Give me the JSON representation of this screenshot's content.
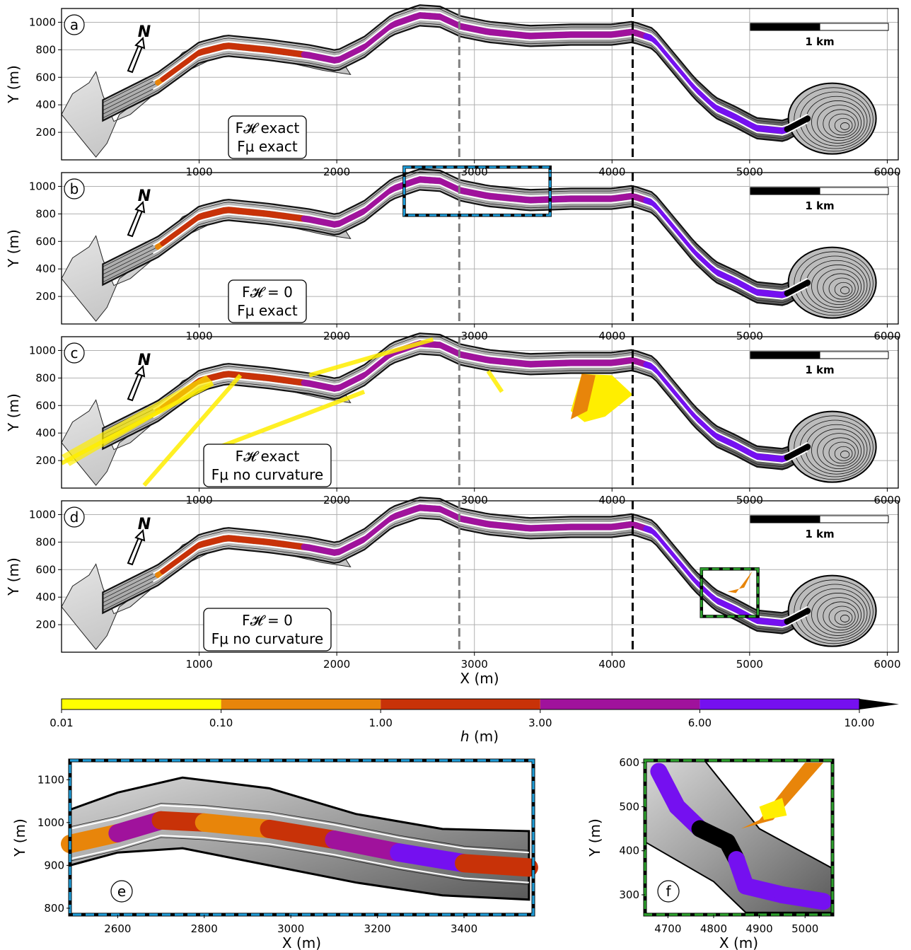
{
  "chart_data": {
    "type": "heatmap",
    "x_label": "X (m)",
    "y_label": "Y (m)",
    "x_range": [
      0,
      6080
    ],
    "y_range": [
      0,
      1100
    ],
    "x_ticks": [
      1000,
      2000,
      3000,
      4000,
      5000,
      6000
    ],
    "x_tick_labels": [
      "1000",
      "2000",
      "3000",
      "4000",
      "5000",
      "6000"
    ],
    "y_ticks": [
      200,
      400,
      600,
      800,
      1000
    ],
    "y_tick_labels": [
      "200",
      "400",
      "600",
      "800",
      "1000"
    ],
    "grid": true,
    "vertical_lines": [
      {
        "x": 2890,
        "color": "#808080",
        "style": "dashed"
      },
      {
        "x": 4150,
        "color": "#000000",
        "style": "dashed"
      }
    ],
    "scale_bar": {
      "length_m": 1000,
      "label": "1 km"
    },
    "north_label": "N",
    "panels": [
      {
        "id": "a",
        "label": "a",
        "settings": [
          "F𝓗 exact",
          "Fμ exact"
        ]
      },
      {
        "id": "b",
        "label": "b",
        "settings": [
          "F𝓗 = 0",
          "Fμ exact"
        ],
        "inset_box": {
          "x": [
            2490,
            3550
          ],
          "y": [
            790,
            1140
          ],
          "color": "#1f9bd6"
        }
      },
      {
        "id": "c",
        "label": "c",
        "settings": [
          "F𝓗 exact",
          "Fμ no curvature"
        ]
      },
      {
        "id": "d",
        "label": "d",
        "settings": [
          "F𝓗 = 0",
          "Fμ no curvature"
        ],
        "inset_box": {
          "x": [
            4650,
            5060
          ],
          "y": [
            260,
            605
          ],
          "color": "#2ca02c"
        }
      }
    ],
    "colorbar": {
      "label": "h (m)",
      "bounds": [
        0.01,
        0.1,
        1.0,
        3.0,
        6.0,
        10.0
      ],
      "tick_labels": [
        "0.01",
        "0.10",
        "1.00",
        "3.00",
        "6.00",
        "10.00"
      ],
      "colors": [
        "#ffff00",
        "#e8850a",
        "#c83208",
        "#a0129c",
        "#7510f0"
      ],
      "over_color": "#000000",
      "extend": "max"
    },
    "insets": [
      {
        "id": "e",
        "label": "e",
        "x_label": "X (m)",
        "y_label": "Y (m)",
        "x_range": [
          2490,
          3560
        ],
        "y_range": [
          785,
          1145
        ],
        "x_ticks": [
          2600,
          2800,
          3000,
          3200,
          3400
        ],
        "x_tick_labels": [
          "2600",
          "2800",
          "3000",
          "3200",
          "3400"
        ],
        "y_ticks": [
          800,
          900,
          1000,
          1100
        ],
        "y_tick_labels": [
          "800",
          "900",
          "1000",
          "1100"
        ],
        "frame_color": "#1f9bd6"
      },
      {
        "id": "f",
        "label": "f",
        "x_label": "X (m)",
        "y_label": "Y (m)",
        "x_range": [
          4650,
          5060
        ],
        "y_range": [
          255,
          605
        ],
        "x_ticks": [
          4700,
          4800,
          4900,
          5000
        ],
        "x_tick_labels": [
          "4700",
          "4800",
          "4900",
          "5000"
        ],
        "y_ticks": [
          300,
          400,
          500,
          600
        ],
        "y_tick_labels": [
          "300",
          "400",
          "500",
          "600"
        ],
        "frame_color": "#2ca02c"
      }
    ],
    "flow_path": {
      "centerline_x": [
        300,
        700,
        1000,
        1200,
        1500,
        1800,
        2000,
        2200,
        2400,
        2600,
        2750,
        2900,
        3100,
        3400,
        3700,
        4000,
        4150,
        4300,
        4450,
        4600,
        4750,
        4900,
        5050,
        5250,
        5420
      ],
      "centerline_y": [
        360,
        560,
        780,
        830,
        800,
        760,
        720,
        820,
        980,
        1050,
        1040,
        970,
        930,
        900,
        910,
        910,
        930,
        880,
        700,
        520,
        380,
        310,
        230,
        210,
        300
      ]
    }
  }
}
